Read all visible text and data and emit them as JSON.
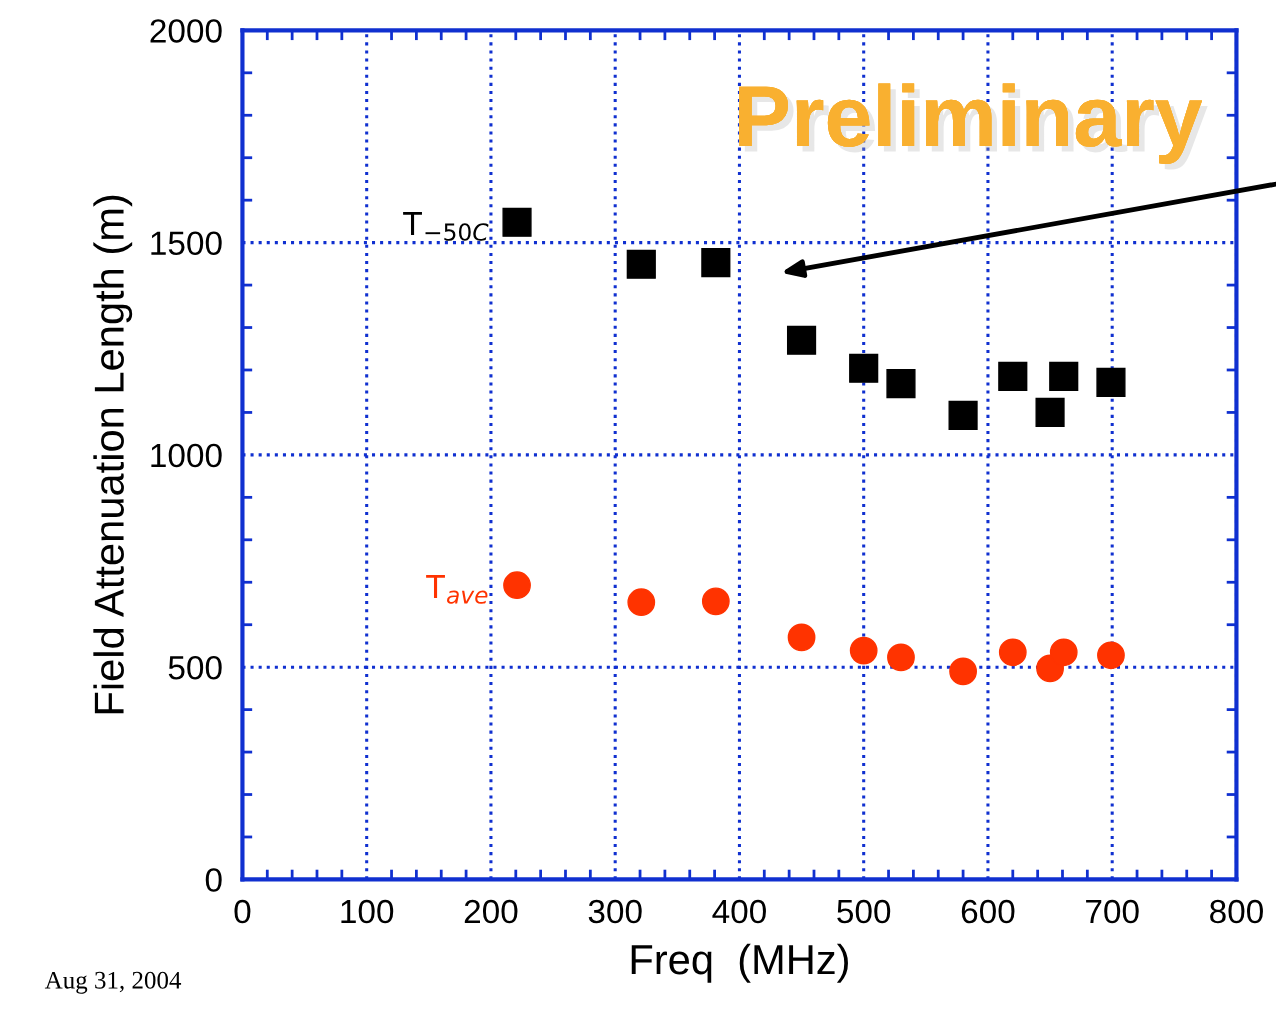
{
  "chart_data": {
    "type": "scatter",
    "xlabel": "Freq  (MHz)",
    "ylabel": "Field Attenuation Length (m)",
    "xlim": [
      0,
      800
    ],
    "ylim": [
      0,
      2000
    ],
    "xticks": [
      0,
      100,
      200,
      300,
      400,
      500,
      600,
      700,
      800
    ],
    "yticks": [
      0,
      500,
      1000,
      1500,
      2000
    ],
    "grid": true,
    "legend": false,
    "series": [
      {
        "name": "T$_{−50C}$",
        "color": "#000000",
        "marker": "square",
        "x": [
          221,
          321,
          381,
          450,
          500,
          530,
          580,
          620,
          650,
          661,
          699
        ],
        "values": [
          1548,
          1449,
          1453,
          1270,
          1204,
          1168,
          1093,
          1185,
          1100,
          1185,
          1171
        ]
      },
      {
        "name": "T$_{ave}$",
        "color": "#ff3300",
        "marker": "circle",
        "x": [
          221,
          321,
          381,
          450,
          500,
          530,
          580,
          620,
          650,
          661,
          699
        ],
        "values": [
          693,
          653,
          655,
          570,
          539,
          523,
          490,
          535,
          497,
          535,
          528
        ]
      }
    ],
    "annotations": [
      "Preliminary",
      "Aug 31, 2004"
    ]
  }
}
